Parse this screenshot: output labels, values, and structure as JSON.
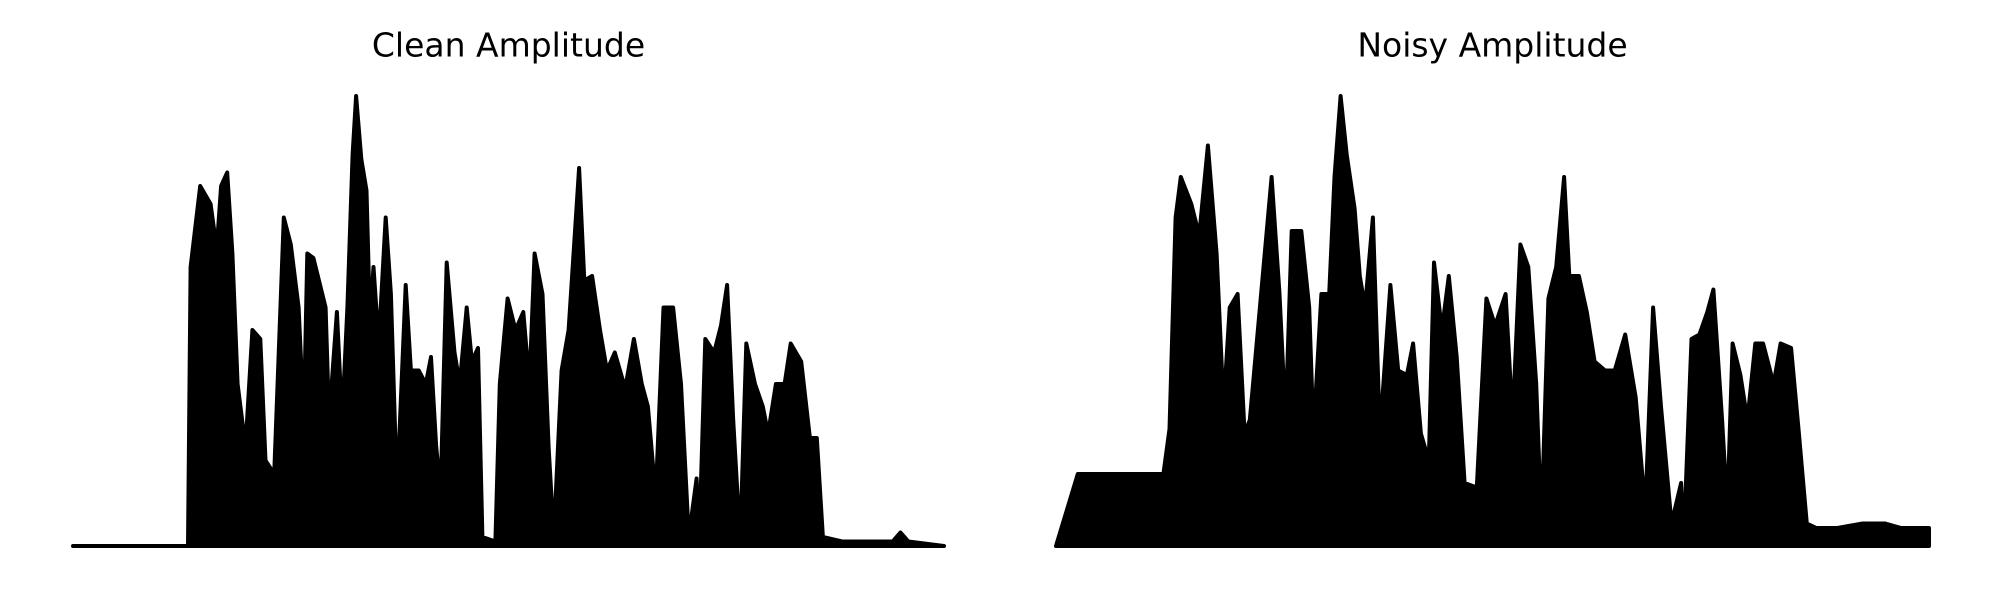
{
  "chart_data": [
    {
      "type": "area",
      "title": "Clean Amplitude",
      "color": "#000000",
      "xlim": [
        0,
        100
      ],
      "ylim": [
        0,
        1
      ],
      "x": [
        0,
        13.2,
        13.5,
        14.6,
        15.8,
        16.5,
        17.0,
        17.7,
        18.3,
        18.9,
        19.8,
        20.6,
        21.5,
        22.1,
        23.1,
        24.2,
        25.0,
        25.9,
        26.5,
        26.9,
        27.6,
        29.0,
        29.4,
        30.3,
        30.9,
        31.5,
        32.1,
        32.5,
        33.1,
        33.7,
        34.1,
        34.5,
        35.1,
        35.9,
        36.5,
        37.2,
        38.2,
        38.8,
        39.7,
        40.5,
        41.1,
        41.7,
        42.2,
        42.9,
        43.8,
        44.4,
        45.2,
        45.8,
        46.5,
        47.0,
        48.5,
        49.0,
        49.9,
        50.8,
        51.7,
        52.4,
        53.0,
        53.9,
        54.6,
        55.2,
        56.1,
        56.9,
        58.1,
        58.7,
        59.6,
        60.5,
        61.3,
        62.2,
        63.4,
        64.4,
        65.3,
        66.0,
        66.9,
        67.8,
        68.9,
        69.8,
        70.7,
        71.6,
        71.9,
        72.6,
        73.6,
        74.4,
        75.1,
        75.8,
        76.6,
        77.3,
        78.3,
        79.2,
        79.8,
        80.7,
        81.7,
        82.4,
        83.6,
        84.6,
        85.4,
        86.1,
        88.3,
        94.1,
        95.0,
        95.9,
        100
      ],
      "values": [
        0,
        0,
        0.62,
        0.8,
        0.76,
        0.66,
        0.8,
        0.83,
        0.65,
        0.36,
        0.22,
        0.48,
        0.46,
        0.19,
        0.16,
        0.73,
        0.67,
        0.53,
        0.28,
        0.65,
        0.64,
        0.53,
        0.28,
        0.52,
        0.28,
        0.53,
        0.87,
        1.0,
        0.86,
        0.79,
        0.5,
        0.62,
        0.45,
        0.73,
        0.56,
        0.12,
        0.58,
        0.39,
        0.39,
        0.36,
        0.42,
        0.22,
        0.12,
        0.63,
        0.43,
        0.36,
        0.53,
        0.41,
        0.44,
        0.02,
        0.01,
        0.36,
        0.55,
        0.48,
        0.52,
        0.36,
        0.65,
        0.56,
        0.22,
        0.02,
        0.39,
        0.48,
        0.84,
        0.59,
        0.6,
        0.48,
        0.39,
        0.43,
        0.35,
        0.46,
        0.36,
        0.31,
        0.11,
        0.53,
        0.53,
        0.36,
        0.02,
        0.15,
        0.01,
        0.46,
        0.43,
        0.49,
        0.58,
        0.28,
        0.01,
        0.45,
        0.36,
        0.31,
        0.25,
        0.36,
        0.36,
        0.45,
        0.41,
        0.24,
        0.24,
        0.02,
        0.01,
        0.01,
        0.03,
        0.01,
        0
      ]
    },
    {
      "type": "area",
      "title": "Noisy Amplitude",
      "color": "#000000",
      "xlim": [
        0,
        100
      ],
      "ylim": [
        0,
        1
      ],
      "x": [
        0,
        2.5,
        12.3,
        13.0,
        13.7,
        14.3,
        15.5,
        16.4,
        17.4,
        18.4,
        19.2,
        19.9,
        20.8,
        21.6,
        22.2,
        24.7,
        25.6,
        26.3,
        27.0,
        28.1,
        29.0,
        29.5,
        30.4,
        31.3,
        31.9,
        32.6,
        33.3,
        34.2,
        34.8,
        35.4,
        36.3,
        37.1,
        38.3,
        39.2,
        40.2,
        40.9,
        41.8,
        42.7,
        43.3,
        44.2,
        45.0,
        45.9,
        46.8,
        48.2,
        49.3,
        50.3,
        51.5,
        52.3,
        53.2,
        54.1,
        55.0,
        55.6,
        56.4,
        57.3,
        58.2,
        58.8,
        59.9,
        60.8,
        61.7,
        62.9,
        64.0,
        65.2,
        66.4,
        67.5,
        68.4,
        69.3,
        70.5,
        71.6,
        71.9,
        72.8,
        73.7,
        74.6,
        75.3,
        76.3,
        76.9,
        77.5,
        78.4,
        79.2,
        80.1,
        81.0,
        82.2,
        83.0,
        84.2,
        85.1,
        86.0,
        87.1,
        89.5,
        92.4,
        95.0,
        96.8,
        100
      ],
      "values": [
        0,
        0.16,
        0.16,
        0.26,
        0.73,
        0.82,
        0.76,
        0.69,
        0.89,
        0.65,
        0.31,
        0.53,
        0.56,
        0.25,
        0.28,
        0.82,
        0.56,
        0.28,
        0.7,
        0.7,
        0.53,
        0.25,
        0.56,
        0.56,
        0.82,
        1.0,
        0.87,
        0.75,
        0.6,
        0.53,
        0.73,
        0.25,
        0.58,
        0.39,
        0.38,
        0.45,
        0.25,
        0.19,
        0.63,
        0.48,
        0.6,
        0.42,
        0.14,
        0.13,
        0.55,
        0.49,
        0.56,
        0.28,
        0.67,
        0.62,
        0.36,
        0.05,
        0.55,
        0.62,
        0.82,
        0.6,
        0.6,
        0.52,
        0.41,
        0.39,
        0.39,
        0.47,
        0.33,
        0.08,
        0.53,
        0.31,
        0.05,
        0.14,
        0.01,
        0.46,
        0.47,
        0.52,
        0.57,
        0.28,
        0.08,
        0.45,
        0.38,
        0.28,
        0.45,
        0.45,
        0.36,
        0.45,
        0.44,
        0.25,
        0.05,
        0.04,
        0.04,
        0.05,
        0.05,
        0.04,
        0.04
      ]
    }
  ]
}
